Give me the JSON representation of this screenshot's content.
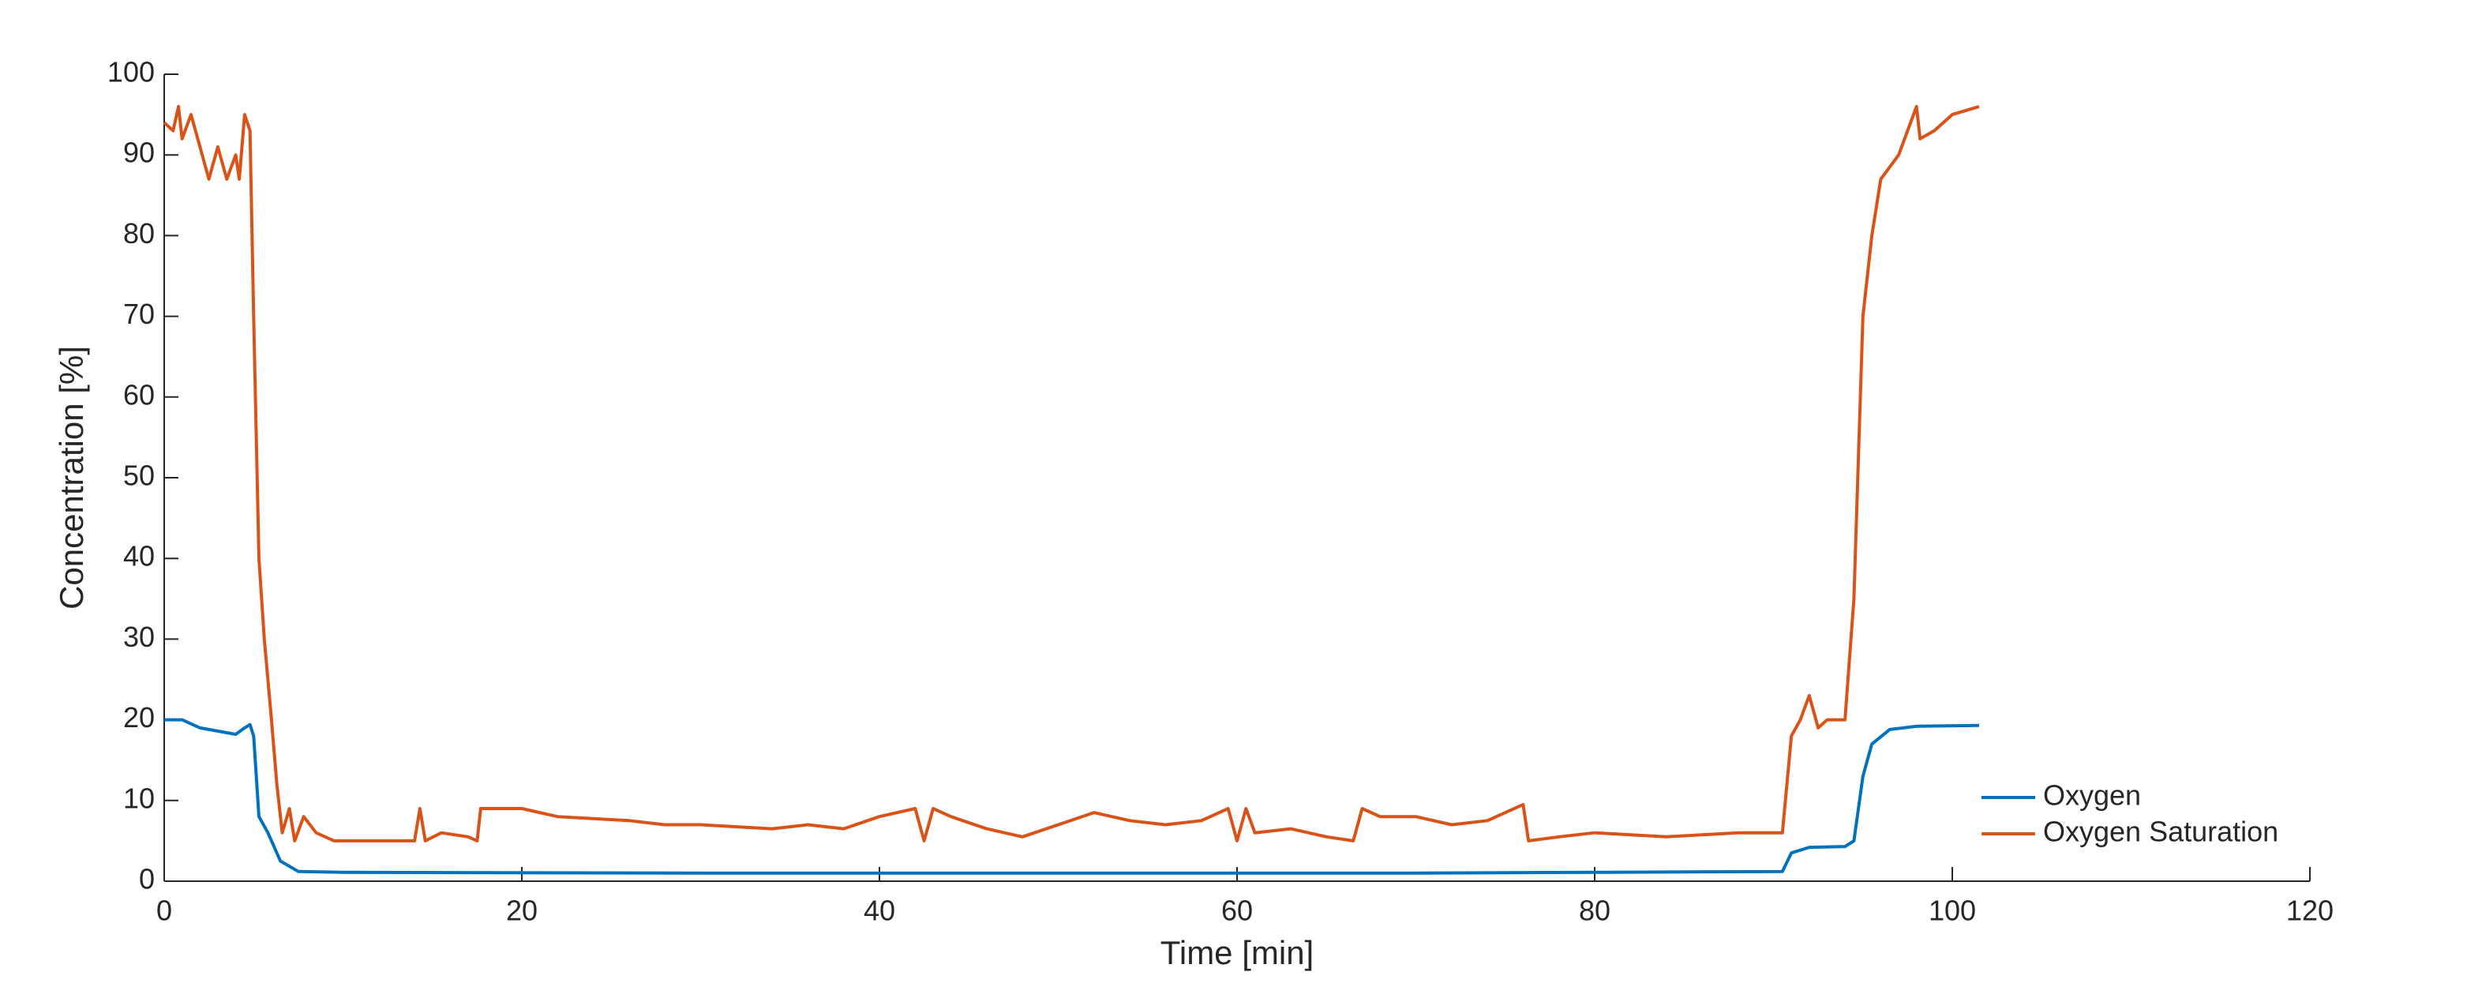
{
  "chart_data": {
    "type": "line",
    "xlabel": "Time [min]",
    "ylabel": "Concentration [%]",
    "xlim": [
      0,
      120
    ],
    "ylim": [
      0,
      100
    ],
    "xticks": [
      0,
      20,
      40,
      60,
      80,
      100,
      120
    ],
    "yticks": [
      0,
      10,
      20,
      30,
      40,
      50,
      60,
      70,
      80,
      90,
      100
    ],
    "legend": "southeast",
    "series": [
      {
        "name": "Oxygen",
        "color": "#0072BD",
        "x": [
          0,
          1,
          2,
          4,
          4.5,
          4.8,
          5,
          5.3,
          5.8,
          6.5,
          7.5,
          10,
          30,
          50,
          60,
          70,
          80,
          90.5,
          91,
          92,
          94,
          94.5,
          95,
          95.5,
          96.5,
          98,
          101.5
        ],
        "values": [
          20,
          20,
          19,
          18.2,
          19,
          19.4,
          18,
          8,
          6,
          2.5,
          1.2,
          1.1,
          1,
          1,
          1,
          1,
          1.1,
          1.2,
          3.5,
          4.2,
          4.3,
          5,
          13,
          17,
          18.8,
          19.2,
          19.3
        ]
      },
      {
        "name": "Oxygen Saturation",
        "color": "#D95319",
        "x": [
          0,
          0.5,
          0.8,
          1,
          1.5,
          2,
          2.5,
          3,
          3.5,
          4,
          4.2,
          4.5,
          4.8,
          5,
          5.3,
          5.6,
          6,
          6.3,
          6.6,
          7,
          7.3,
          7.8,
          8.5,
          9.5,
          14,
          14.3,
          14.6,
          15.5,
          17,
          17.5,
          17.7,
          20,
          22,
          26,
          28,
          30,
          34,
          36,
          38,
          40,
          41,
          42,
          42.5,
          43,
          44,
          46,
          48,
          50,
          52,
          54,
          56,
          58,
          59.5,
          60,
          60.5,
          61,
          63,
          65,
          66.5,
          67,
          68,
          70,
          72,
          74,
          76,
          76.3,
          78,
          80,
          84,
          88,
          90.5,
          91,
          91.5,
          92,
          92.5,
          93,
          94,
          94.5,
          95,
          95.5,
          96,
          97,
          97.5,
          98,
          98.2,
          99,
          100,
          101.5
        ],
        "values": [
          94,
          93,
          96,
          92,
          95,
          91,
          87,
          91,
          87,
          90,
          87,
          95,
          93,
          70,
          40,
          30,
          20,
          12,
          6,
          9,
          5,
          8,
          6,
          5,
          5,
          9,
          5,
          6,
          5.5,
          5,
          9,
          9,
          8,
          7.5,
          7,
          7,
          6.5,
          7,
          6.5,
          8,
          8.5,
          9,
          5,
          9,
          8,
          6.5,
          5.5,
          7,
          8.5,
          7.5,
          7,
          7.5,
          9,
          5,
          9,
          6,
          6.5,
          5.5,
          5,
          9,
          8,
          8,
          7,
          7.5,
          9.5,
          5,
          5.5,
          6,
          5.5,
          6,
          6,
          18,
          20,
          23,
          19,
          20,
          20,
          35,
          70,
          80,
          87,
          90,
          93,
          96,
          92,
          93,
          95,
          96
        ]
      }
    ]
  }
}
